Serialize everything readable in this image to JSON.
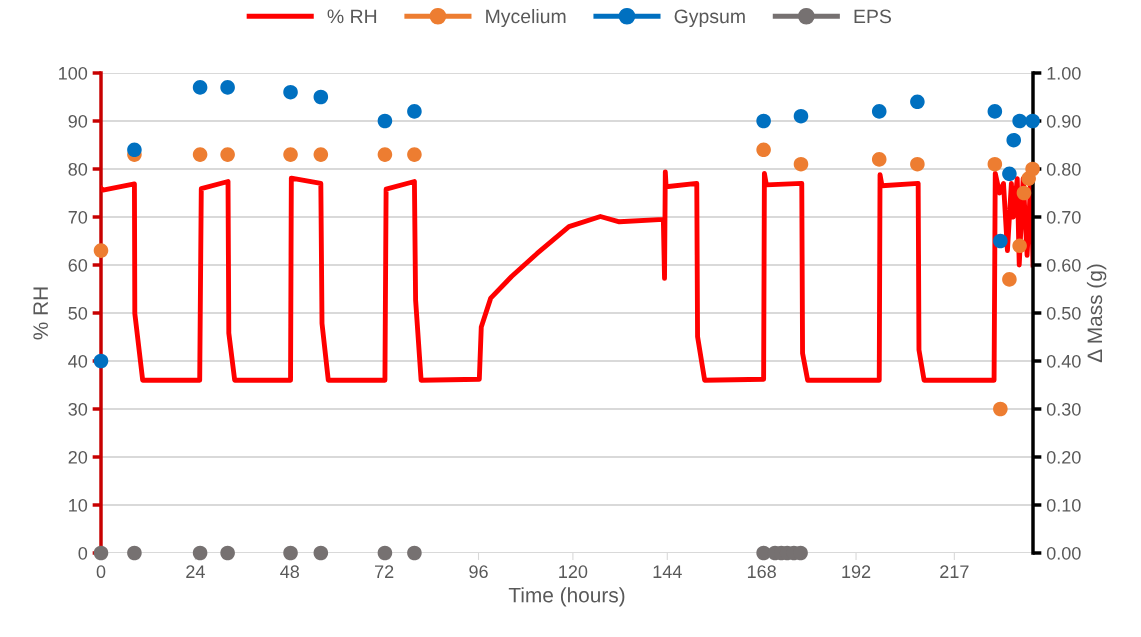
{
  "chart_data": {
    "type": "line",
    "xlabel": "Time (hours)",
    "ylabel": "% RH",
    "y2label": "Δ Mass (g)",
    "xlim": [
      0,
      237
    ],
    "xticks": [
      0,
      24,
      48,
      72,
      96,
      120,
      144,
      168,
      192,
      217
    ],
    "ylim": [
      0,
      100
    ],
    "yticks": [
      0,
      10,
      20,
      30,
      40,
      50,
      60,
      70,
      80,
      90,
      100
    ],
    "y2lim": [
      0,
      1
    ],
    "y2ticks": [
      {
        "value": 0,
        "label": "0.00"
      },
      {
        "value": 0.1,
        "label": "0.10"
      },
      {
        "value": 0.2,
        "label": "0.20"
      },
      {
        "value": 0.3,
        "label": "0.30"
      },
      {
        "value": 0.4,
        "label": "0.40"
      },
      {
        "value": 0.5,
        "label": "0.50"
      },
      {
        "value": 0.6,
        "label": "0.60"
      },
      {
        "value": 0.7,
        "label": "0.70"
      },
      {
        "value": 0.8,
        "label": "0.80"
      },
      {
        "value": 0.9,
        "label": "0.90"
      },
      {
        "value": 1,
        "label": "1.00"
      }
    ],
    "grid": "y",
    "legend": "top",
    "series": [
      {
        "name": "% RH",
        "color": "#ff0000",
        "marker": "none",
        "line_style": "solid",
        "x": [
          0,
          0.5,
          8.5,
          8.6,
          10.6,
          25.1,
          25.5,
          32.3,
          32.5,
          34.0,
          48.2,
          48.4,
          55.9,
          56.2,
          57.8,
          72.2,
          72.5,
          79.7,
          80.0,
          81.4,
          96.2,
          96.7,
          99.1,
          104.4,
          110.9,
          119.0,
          127.0,
          131.8,
          143.0,
          143.3,
          143.5,
          143.7,
          151.5,
          151.7,
          153.5,
          168.5,
          168.7,
          169.2,
          178.2,
          178.4,
          179.7,
          197.9,
          198.1,
          198.6,
          207.8,
          208.0,
          209.3,
          227.1,
          227.4,
          228.5,
          229.5,
          230.5,
          231.5,
          232.0,
          233.0,
          233.5,
          234.5,
          235.5,
          236.5,
          237
        ],
        "values": [
          76,
          75.6,
          76.9,
          49.9,
          36.0,
          36.0,
          75.9,
          77.4,
          45.8,
          36.0,
          36.0,
          78.1,
          77.0,
          47.8,
          36.0,
          36.0,
          75.8,
          77.4,
          52.7,
          36.0,
          36.2,
          47.1,
          53.1,
          57.6,
          62.4,
          68.0,
          70.1,
          69.0,
          69.5,
          57.2,
          79.4,
          76.3,
          77.0,
          45.1,
          36.0,
          36.2,
          79.1,
          76.7,
          77.0,
          41.6,
          36.0,
          36.0,
          78.8,
          76.5,
          77.0,
          42.3,
          36.0,
          36.0,
          79.1,
          75,
          77,
          63,
          77,
          70,
          78,
          60,
          78,
          62,
          79,
          60
        ]
      },
      {
        "name": "Mycelium",
        "type": "scatter",
        "axis": "y2",
        "color": "#ed7d31",
        "marker": "circle",
        "x": [
          0,
          8.5,
          25.2,
          32.2,
          48.2,
          55.9,
          72.2,
          79.7,
          168.5,
          178.0,
          197.9,
          207.6,
          227.3,
          228.7,
          231.0,
          233.6,
          234.7,
          235.9,
          236.9
        ],
        "values": [
          0.63,
          0.83,
          0.83,
          0.83,
          0.83,
          0.83,
          0.83,
          0.83,
          0.84,
          0.81,
          0.82,
          0.81,
          0.81,
          0.3,
          0.57,
          0.64,
          0.75,
          0.78,
          0.8
        ]
      },
      {
        "name": "Gypsum",
        "type": "scatter",
        "axis": "y2",
        "color": "#0070c0",
        "marker": "circle",
        "x": [
          0,
          8.5,
          25.2,
          32.2,
          48.2,
          55.9,
          72.2,
          79.7,
          168.5,
          178.0,
          197.9,
          207.6,
          227.3,
          228.7,
          231.0,
          232.1,
          233.6,
          236.9
        ],
        "values": [
          0.4,
          0.84,
          0.97,
          0.97,
          0.96,
          0.95,
          0.9,
          0.92,
          0.9,
          0.91,
          0.92,
          0.94,
          0.92,
          0.65,
          0.79,
          0.86,
          0.9,
          0.9
        ]
      },
      {
        "name": "EPS",
        "type": "scatter",
        "axis": "y2",
        "color": "#767171",
        "marker": "circle",
        "x": [
          0,
          8.5,
          25.2,
          32.2,
          48.2,
          55.9,
          72.2,
          79.7,
          168.5,
          171.4,
          173.0,
          174.5,
          176.2,
          177.9
        ],
        "values": [
          0,
          0,
          0,
          0,
          0,
          0,
          0,
          0,
          0,
          0,
          0,
          0,
          0,
          0
        ]
      }
    ]
  }
}
